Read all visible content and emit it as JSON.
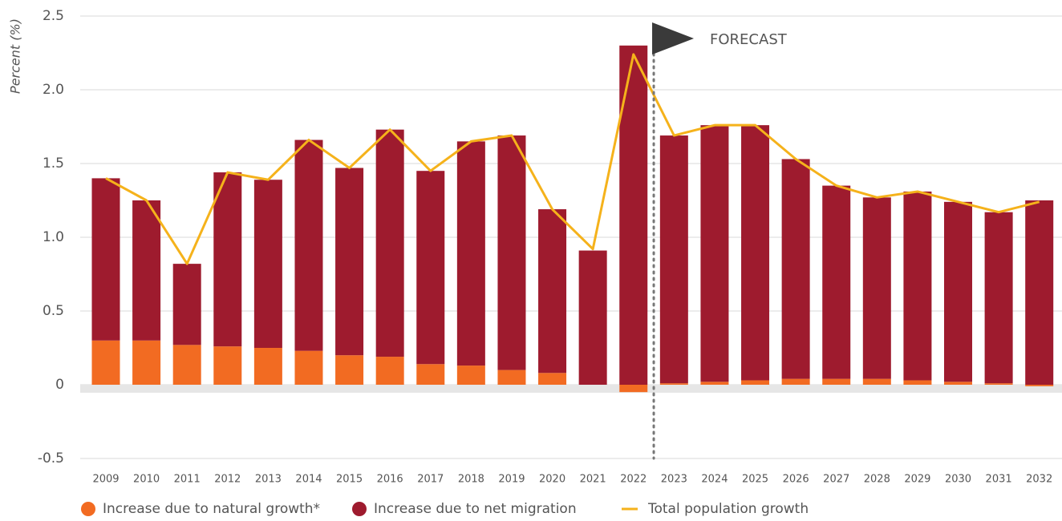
{
  "chart_data": {
    "type": "bar",
    "stacked": true,
    "ylabel": "Percent (%)",
    "annotation": "FORECAST",
    "categories": [
      "2009",
      "2010",
      "2011",
      "2012",
      "2013",
      "2014",
      "2015",
      "2016",
      "2017",
      "2018",
      "2019",
      "2020",
      "2021",
      "2022",
      "2023",
      "2024",
      "2025",
      "2026",
      "2027",
      "2028",
      "2029",
      "2030",
      "2031",
      "2032"
    ],
    "series": [
      {
        "name": "Increase due to natural growth*",
        "color": "#f26b22",
        "type": "bar",
        "values": [
          0.3,
          0.3,
          0.27,
          0.26,
          0.25,
          0.23,
          0.2,
          0.19,
          0.14,
          0.13,
          0.1,
          0.08,
          0,
          -0.05,
          0.01,
          0.02,
          0.03,
          0.04,
          0.04,
          0.04,
          0.03,
          0.02,
          0.01,
          -0.01
        ]
      },
      {
        "name": "Increase due to net migration",
        "color": "#9e1b2e",
        "type": "bar",
        "values": [
          1.1,
          0.95,
          0.55,
          1.18,
          1.14,
          1.43,
          1.27,
          1.54,
          1.31,
          1.52,
          1.59,
          1.11,
          0.91,
          2.3,
          1.68,
          1.74,
          1.73,
          1.49,
          1.31,
          1.23,
          1.28,
          1.22,
          1.16,
          1.25
        ]
      },
      {
        "name": "Total population growth",
        "color": "#f5b21b",
        "type": "line",
        "values": [
          1.4,
          1.25,
          0.82,
          1.44,
          1.39,
          1.66,
          1.47,
          1.73,
          1.45,
          1.65,
          1.69,
          1.19,
          0.92,
          2.24,
          1.69,
          1.76,
          1.76,
          1.53,
          1.35,
          1.27,
          1.31,
          1.24,
          1.17,
          1.24
        ]
      }
    ],
    "ylim": [
      -0.5,
      2.5
    ],
    "yticks": [
      2.5,
      {
        "value": 2,
        "label": "2.0"
      },
      1.5,
      {
        "value": 1,
        "label": "1.0"
      },
      0.5,
      0,
      -0.5
    ],
    "grid": true
  }
}
